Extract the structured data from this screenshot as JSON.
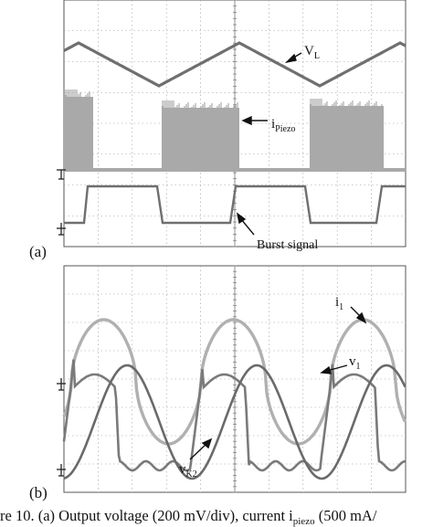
{
  "figure": {
    "panel_a": {
      "letter": "(a)",
      "label_vl": {
        "main": "V",
        "sub": "L"
      },
      "label_ipiezo": {
        "main": "i",
        "sub": "Piezo"
      },
      "label_burst": "Burst signal"
    },
    "panel_b": {
      "letter": "(b)",
      "label_i1": {
        "main": "i",
        "sub": "1"
      },
      "label_v1": {
        "main": "v",
        "sub": "1"
      },
      "label_vk2": {
        "main": "v",
        "sub": "K2"
      }
    },
    "caption": {
      "part1": "re 10. (a) Output voltage (200 mV/div), current i",
      "sub": "piezo",
      "part2": " (500 mA/"
    }
  },
  "colors": {
    "trace_gray": "#8a8a8a",
    "trace_light": "#a9a9a9",
    "trace_dark": "#6f6f6f",
    "grid": "#9a9a9a",
    "frame": "#555555"
  }
}
